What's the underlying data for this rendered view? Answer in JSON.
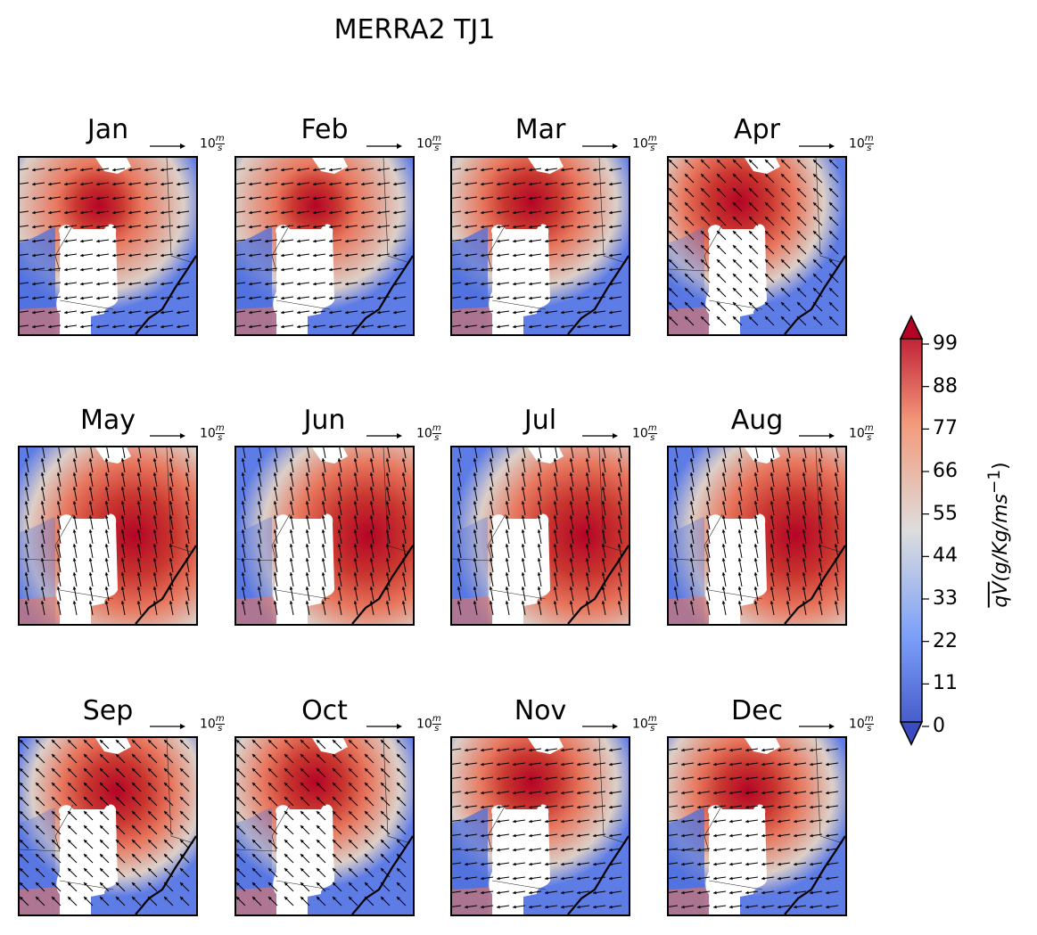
{
  "chart_data": {
    "type": "heatmap",
    "title": "MERRA2 TJ1",
    "panels": [
      {
        "label": "Jan",
        "intensity": 0.72,
        "core": [
          0.45,
          0.27
        ],
        "flow": "westward",
        "key": "10ₘₛ"
      },
      {
        "label": "Feb",
        "intensity": 0.7,
        "core": [
          0.45,
          0.27
        ],
        "flow": "westward",
        "key": ""
      },
      {
        "label": "Mar",
        "intensity": 0.85,
        "core": [
          0.45,
          0.25
        ],
        "flow": "westward",
        "key": ""
      },
      {
        "label": "Apr",
        "intensity": 0.95,
        "core": [
          0.4,
          0.25
        ],
        "flow": "northwest",
        "key": ""
      },
      {
        "label": "May",
        "intensity": 1.0,
        "core": [
          0.65,
          0.5
        ],
        "flow": "northward",
        "key": ""
      },
      {
        "label": "Jun",
        "intensity": 1.0,
        "core": [
          0.75,
          0.5
        ],
        "flow": "northward",
        "key": ""
      },
      {
        "label": "Jul",
        "intensity": 1.0,
        "core": [
          0.75,
          0.5
        ],
        "flow": "northward",
        "key": ""
      },
      {
        "label": "Aug",
        "intensity": 1.0,
        "core": [
          0.72,
          0.5
        ],
        "flow": "northward",
        "key": ""
      },
      {
        "label": "Sep",
        "intensity": 0.95,
        "core": [
          0.55,
          0.3
        ],
        "flow": "northwest",
        "key": ""
      },
      {
        "label": "Oct",
        "intensity": 0.9,
        "core": [
          0.45,
          0.25
        ],
        "flow": "northwest",
        "key": ""
      },
      {
        "label": "Nov",
        "intensity": 0.85,
        "core": [
          0.45,
          0.25
        ],
        "flow": "westward",
        "key": ""
      },
      {
        "label": "Dec",
        "intensity": 0.88,
        "core": [
          0.45,
          0.3
        ],
        "flow": "westward",
        "key": ""
      }
    ],
    "quiver_key_label": "10",
    "quiver_key_unit_num": "m",
    "quiver_key_unit_den": "s",
    "colorbar": {
      "ticks": [
        "99",
        "88",
        "77",
        "66",
        "55",
        "44",
        "33",
        "22",
        "11",
        "0"
      ],
      "range": [
        0,
        99
      ],
      "colormap": "coolwarm",
      "label": "qV(g/Kg/ms⁻¹)",
      "label_overbar": "qV",
      "label_rest": "(g/Kg/ms",
      "label_sup": "−1",
      "label_close": ")"
    },
    "colors": {
      "low": "#3b4cc0",
      "mid": "#dddddd",
      "high": "#b40426",
      "mask": "#ffffff"
    }
  }
}
